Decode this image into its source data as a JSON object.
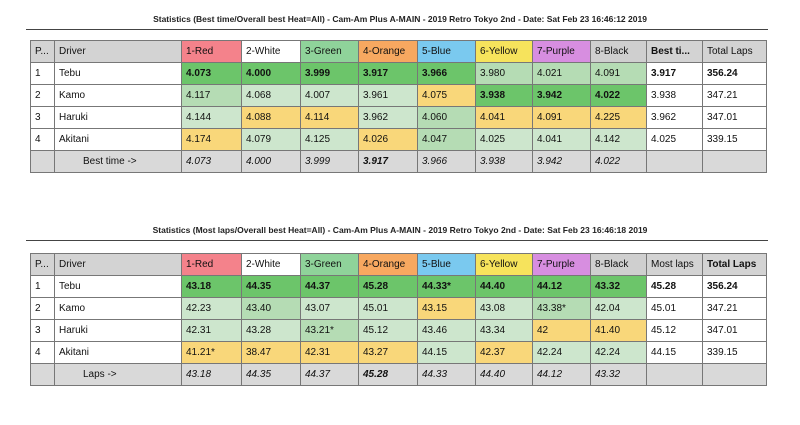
{
  "tables": [
    {
      "title": "Statistics (Best time/Overall best Heat=All) - Cam-Am Plus A-MAIN - 2019 Retro Tokyo 2nd - Date: Sat Feb 23 16:46:12 2019",
      "headers": [
        "P...",
        "Driver",
        "1-Red",
        "2-White",
        "3-Green",
        "4-Orange",
        "5-Blue",
        "6-Yellow",
        "7-Purple",
        "8-Black",
        "Best ti...",
        "Total Laps"
      ],
      "rows": [
        {
          "pos": "1",
          "driver": "Tebu",
          "cells": [
            "4.073",
            "4.000",
            "3.999",
            "3.917",
            "3.966",
            "3.980",
            "4.021",
            "4.091"
          ],
          "best": "3.917",
          "total": "356.24"
        },
        {
          "pos": "2",
          "driver": "Kamo",
          "cells": [
            "4.117",
            "4.068",
            "4.007",
            "3.961",
            "4.075",
            "3.938",
            "3.942",
            "4.022"
          ],
          "best": "3.938",
          "total": "347.21"
        },
        {
          "pos": "3",
          "driver": "Haruki",
          "cells": [
            "4.144",
            "4.088",
            "4.114",
            "3.962",
            "4.060",
            "4.041",
            "4.091",
            "4.225"
          ],
          "best": "3.962",
          "total": "347.01"
        },
        {
          "pos": "4",
          "driver": "Akitani",
          "cells": [
            "4.174",
            "4.079",
            "4.125",
            "4.026",
            "4.047",
            "4.025",
            "4.041",
            "4.142"
          ],
          "best": "4.025",
          "total": "339.15"
        }
      ],
      "footer": {
        "label": "Best time ->",
        "cells": [
          "4.073",
          "4.000",
          "3.999",
          "3.917",
          "3.966",
          "3.938",
          "3.942",
          "4.022"
        ]
      }
    },
    {
      "title": "Statistics (Most laps/Overall best Heat=All) - Cam-Am Plus A-MAIN - 2019 Retro Tokyo 2nd - Date: Sat Feb 23 16:46:18 2019",
      "headers": [
        "P...",
        "Driver",
        "1-Red",
        "2-White",
        "3-Green",
        "4-Orange",
        "5-Blue",
        "6-Yellow",
        "7-Purple",
        "8-Black",
        "Most laps",
        "Total Laps"
      ],
      "rows": [
        {
          "pos": "1",
          "driver": "Tebu",
          "cells": [
            "43.18",
            "44.35",
            "44.37",
            "45.28",
            "44.33*",
            "44.40",
            "44.12",
            "43.32"
          ],
          "best": "45.28",
          "total": "356.24"
        },
        {
          "pos": "2",
          "driver": "Kamo",
          "cells": [
            "42.23",
            "43.40",
            "43.07",
            "45.01",
            "43.15",
            "43.08",
            "43.38*",
            "42.04"
          ],
          "best": "45.01",
          "total": "347.21"
        },
        {
          "pos": "3",
          "driver": "Haruki",
          "cells": [
            "42.31",
            "43.28",
            "43.21*",
            "45.12",
            "43.46",
            "43.34",
            "42",
            "41.40"
          ],
          "best": "45.12",
          "total": "347.01"
        },
        {
          "pos": "4",
          "driver": "Akitani",
          "cells": [
            "41.21*",
            "38.47",
            "42.31",
            "43.27",
            "44.15",
            "42.37",
            "42.24",
            "42.24"
          ],
          "best": "44.15",
          "total": "339.15"
        }
      ],
      "footer": {
        "label": "Laps ->",
        "cells": [
          "43.18",
          "44.35",
          "44.37",
          "45.28",
          "44.33",
          "44.40",
          "44.12",
          "43.32"
        ]
      }
    }
  ]
}
